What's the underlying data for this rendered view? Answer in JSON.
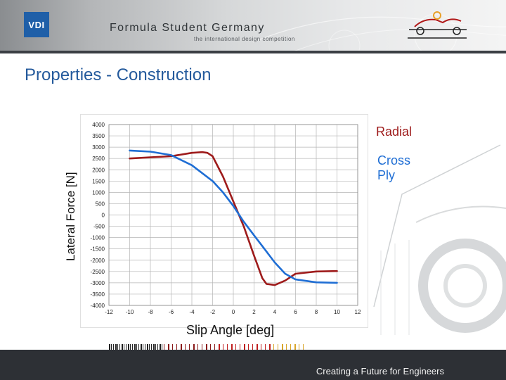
{
  "header": {
    "logo_text": "VDI",
    "org_name": "Formula Student Germany",
    "tagline": "the international design competition"
  },
  "slide": {
    "title": "Properties - Construction"
  },
  "footer": {
    "text": "Creating a Future for Engineers"
  },
  "colors": {
    "title": "#245a9c",
    "radial": "#9e1b1b",
    "cross_ply": "#1f6ed4",
    "footer_bg": "#2d3035"
  },
  "chart_data": {
    "type": "line",
    "xlabel": "Slip Angle [deg]",
    "ylabel": "Lateral Force [N]",
    "xlim": [
      -12,
      12
    ],
    "ylim": [
      -4000,
      4000
    ],
    "xticks": [
      -12,
      -10,
      -8,
      -6,
      -4,
      -2,
      0,
      2,
      4,
      6,
      8,
      10,
      12
    ],
    "yticks": [
      4000,
      3500,
      3000,
      2500,
      2000,
      1500,
      1000,
      500,
      0,
      -500,
      -1000,
      -1500,
      -2000,
      -2500,
      -3000,
      -3500,
      -4000
    ],
    "grid": true,
    "legend_position": "right",
    "series": [
      {
        "name": "Radial",
        "color": "#9e1b1b",
        "x": [
          -10,
          -8,
          -6,
          -4,
          -3,
          -2.5,
          -2,
          -1,
          0,
          1,
          2,
          2.8,
          3.2,
          4,
          5,
          6,
          8,
          10
        ],
        "y": [
          2500,
          2550,
          2600,
          2750,
          2780,
          2750,
          2600,
          1700,
          600,
          -500,
          -1800,
          -2800,
          -3050,
          -3100,
          -2900,
          -2600,
          -2500,
          -2480
        ]
      },
      {
        "name": "Cross Ply",
        "color": "#1f6ed4",
        "x": [
          -10,
          -8,
          -6,
          -4,
          -2,
          -1,
          0,
          1,
          2,
          3,
          4,
          5,
          6,
          8,
          10
        ],
        "y": [
          2850,
          2800,
          2650,
          2200,
          1500,
          1000,
          400,
          -300,
          -900,
          -1500,
          -2100,
          -2600,
          -2850,
          -2980,
          -3000
        ]
      }
    ]
  }
}
